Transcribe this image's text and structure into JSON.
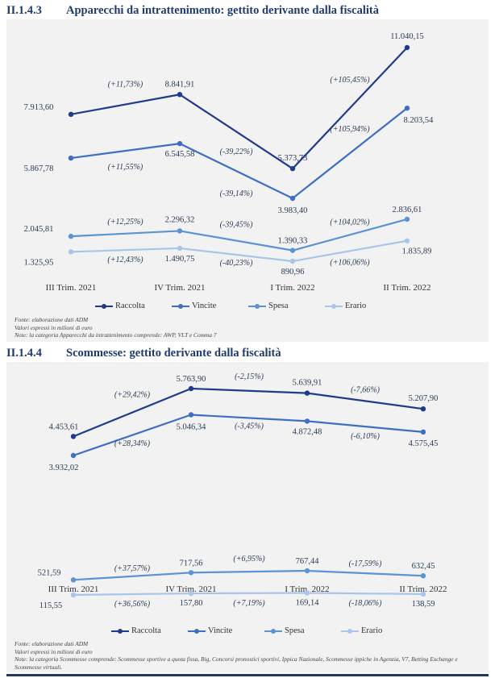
{
  "sections": [
    {
      "number": "II.1.4.3",
      "title": "Apparecchi da intrattenimento: gettito derivante dalla fiscalità",
      "notes": [
        "Fonte: elaborazione dati ADM",
        "Valori espressi in milioni di euro",
        "Note: la categoria Apparecchi da intrattenimento comprende: AWP, VLT e Comma 7"
      ]
    },
    {
      "number": "II.1.4.4",
      "title": "Scommesse: gettito derivante dalla fiscalità",
      "notes": [
        "Fonte: elaborazione dati ADM",
        "Valori espressi in milioni di euro",
        "Note: la categoria Scommesse comprende: Scommesse sportive a quota fissa, Big, Concorsi pronostici sportivi, Ippica Nazionale, Scommesse ippiche in Agenzia, V7, Betting Exchange e",
        "Scommesse virtuali."
      ]
    }
  ],
  "chart_data": [
    {
      "type": "line",
      "categories": [
        "III Trim. 2021",
        "IV Trim. 2021",
        "I Trim. 2022",
        "II Trim. 2022"
      ],
      "series": [
        {
          "name": "Raccolta",
          "color": "#1f3b8c",
          "values": [
            7913.6,
            8841.91,
            5373.73,
            11040.15
          ],
          "value_labels": [
            "7.913,60",
            "8.841,91",
            "5.373,73",
            "11.040,15"
          ],
          "changes": [
            "(+11,73%)",
            "(-39,22%)",
            "(+105,45%)"
          ]
        },
        {
          "name": "Vincite",
          "color": "#3f6fc4",
          "values": [
            5867.78,
            6545.58,
            3983.4,
            8203.54
          ],
          "value_labels": [
            "5.867,78",
            "6.545,58",
            "3.983,40",
            "8.203,54"
          ],
          "changes": [
            "(+11,55%)",
            "(-39,14%)",
            "(+105,94%)"
          ]
        },
        {
          "name": "Spesa",
          "color": "#5b93d3",
          "values": [
            2045.81,
            2296.32,
            1390.33,
            2836.61
          ],
          "value_labels": [
            "2.045,81",
            "2.296,32",
            "1.390,33",
            "2.836,61"
          ],
          "changes": [
            "(+12,25%)",
            "(-39,45%)",
            "(+104,02%)"
          ]
        },
        {
          "name": "Erario",
          "color": "#a9c6e8",
          "values": [
            1325.95,
            1490.75,
            890.96,
            1835.89
          ],
          "value_labels": [
            "1.325,95",
            "1.490,75",
            "890,96",
            "1.835,89"
          ],
          "changes": [
            "(+12,43%)",
            "(-40,23%)",
            "(+106,06%)"
          ]
        }
      ]
    },
    {
      "type": "line",
      "categories": [
        "III Trim. 2021",
        "IV Trim. 2021",
        "I Trim. 2022",
        "II Trim. 2022"
      ],
      "series": [
        {
          "name": "Raccolta",
          "color": "#1f3b8c",
          "values": [
            4453.61,
            5763.9,
            5639.91,
            5207.9
          ],
          "value_labels": [
            "4.453,61",
            "5.763,90",
            "5.639,91",
            "5.207,90"
          ],
          "changes": [
            "(+29,42%)",
            "(-2,15%)",
            "(-7,66%)"
          ]
        },
        {
          "name": "Vincite",
          "color": "#3f6fc4",
          "values": [
            3932.02,
            5046.34,
            4872.48,
            4575.45
          ],
          "value_labels": [
            "3.932,02",
            "5.046,34",
            "4.872,48",
            "4.575,45"
          ],
          "changes": [
            "(+28,34%)",
            "(-3,45%)",
            "(-6,10%)"
          ]
        },
        {
          "name": "Spesa",
          "color": "#5b93d3",
          "values": [
            521.59,
            717.56,
            767.44,
            632.45
          ],
          "value_labels": [
            "521,59",
            "717,56",
            "767,44",
            "632,45"
          ],
          "changes": [
            "(+37,57%)",
            "(+6,95%)",
            "(-17,59%)"
          ]
        },
        {
          "name": "Erario",
          "color": "#a9c6e8",
          "values": [
            115.55,
            157.8,
            169.14,
            138.59
          ],
          "value_labels": [
            "115,55",
            "157,80",
            "169,14",
            "138,59"
          ],
          "changes": [
            "(+36,56%)",
            "(+7,19%)",
            "(-18,06%)"
          ]
        }
      ]
    }
  ]
}
